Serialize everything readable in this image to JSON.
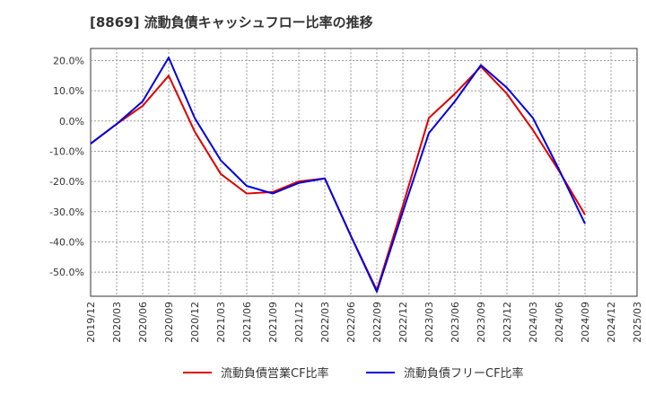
{
  "chart_data": {
    "type": "line",
    "title": "[8869]  流動負債キャッシュフロー比率の推移",
    "xlabel": "",
    "ylabel": "",
    "ylim": [
      -58,
      24
    ],
    "grid": true,
    "legend_position": "bottom",
    "x_ticks": [
      "2019/12",
      "2020/03",
      "2020/06",
      "2020/09",
      "2020/12",
      "2021/03",
      "2021/06",
      "2021/09",
      "2021/12",
      "2022/03",
      "2022/06",
      "2022/09",
      "2022/12",
      "2023/03",
      "2023/06",
      "2023/09",
      "2023/12",
      "2024/03",
      "2024/06",
      "2024/09",
      "2024/12",
      "2025/03"
    ],
    "y_ticks": [
      20,
      10,
      0,
      -10,
      -20,
      -30,
      -40,
      -50
    ],
    "y_tick_labels": [
      "20.0%",
      "10.0%",
      "0.0%",
      "-10.0%",
      "-20.0%",
      "-30.0%",
      "-40.0%",
      "-50.0%"
    ],
    "x": [
      "2019/12",
      "2020/03",
      "2020/06",
      "2020/09",
      "2020/12",
      "2021/03",
      "2021/06",
      "2021/09",
      "2021/12",
      "2022/03",
      "2022/06",
      "2022/09",
      "2022/12",
      "2023/03",
      "2023/06",
      "2023/09",
      "2023/12",
      "2024/03",
      "2024/06",
      "2024/09"
    ],
    "series": [
      {
        "name": "流動負債営業CF比率",
        "color": "#dd0000",
        "values": [
          -7.5,
          -1.0,
          5.0,
          15.0,
          -3.5,
          -17.5,
          -24.0,
          -23.5,
          -20.0,
          -19.0,
          -38.0,
          -56.0,
          -28.0,
          1.0,
          9.0,
          18.0,
          9.0,
          -3.0,
          -16.5,
          -31.0
        ]
      },
      {
        "name": "流動負債フリーCF比率",
        "color": "#0000dd",
        "values": [
          -7.5,
          -1.0,
          6.5,
          21.0,
          1.0,
          -13.0,
          -21.5,
          -24.0,
          -20.5,
          -19.0,
          -38.0,
          -56.5,
          -30.0,
          -4.0,
          6.5,
          18.5,
          11.0,
          1.0,
          -16.0,
          -34.0
        ]
      }
    ]
  }
}
